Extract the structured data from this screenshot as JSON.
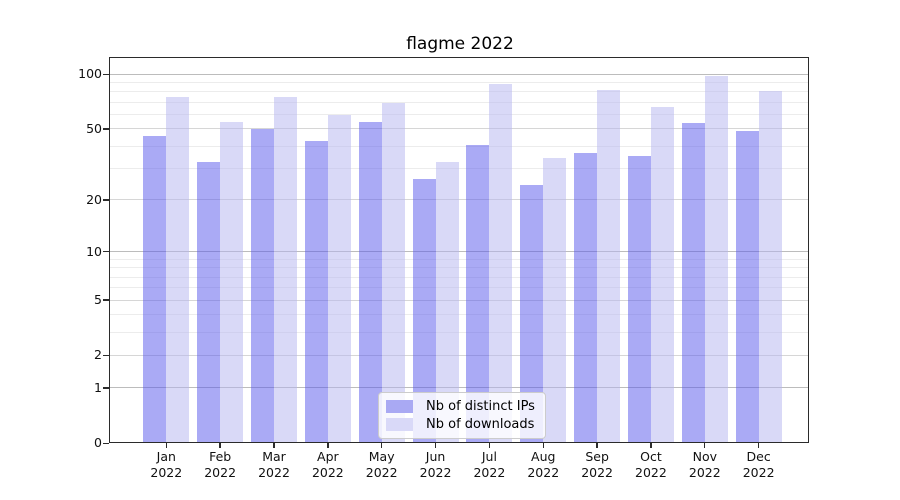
{
  "title": "flagme 2022",
  "chart_data": {
    "type": "bar",
    "title": "flagme 2022",
    "xlabel": "",
    "ylabel": "",
    "yscale": "log1p (y position proportional to log10(value+1))",
    "ylim": [
      0,
      123
    ],
    "grid": true,
    "legend_position": "lower center",
    "year": "2022",
    "categories": [
      "Jan",
      "Feb",
      "Mar",
      "Apr",
      "May",
      "Jun",
      "Jul",
      "Aug",
      "Sep",
      "Oct",
      "Nov",
      "Dec"
    ],
    "yticks": [
      0,
      1,
      2,
      5,
      10,
      20,
      50,
      100
    ],
    "minor_gridline_values": [
      3,
      4,
      6,
      7,
      8,
      9,
      30,
      40,
      60,
      70,
      80,
      90
    ],
    "series": [
      {
        "name": "Nb of distinct IPs",
        "color": "rgba(85,85,235,0.5)",
        "swatch_color": "#a9a9f3",
        "values": [
          45,
          32,
          49,
          42,
          54,
          26,
          40,
          24,
          36,
          35,
          53,
          48
        ]
      },
      {
        "name": "Nb of downloads",
        "color": "rgba(180,180,240,0.5)",
        "swatch_color": "#d9d9f8",
        "values": [
          74,
          54,
          74,
          59,
          68,
          32,
          87,
          34,
          81,
          65,
          96,
          80
        ]
      }
    ],
    "grid_colors": {
      "decade": "#bcbcbc",
      "labeled": "#d6d6d6",
      "minor": "#ececec"
    }
  }
}
